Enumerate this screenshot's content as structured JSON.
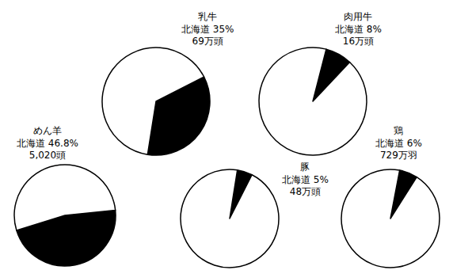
{
  "chart_data": [
    {
      "type": "pie",
      "title": "乳牛",
      "categories": [
        "北海道",
        null
      ],
      "values": [
        35,
        65
      ],
      "value_labels": [
        "35%",
        null
      ],
      "colors": [
        "#000000",
        "#ffffff"
      ],
      "annotation": "69万頭"
    },
    {
      "type": "pie",
      "title": "肉用牛",
      "categories": [
        "北海道",
        null
      ],
      "values": [
        8,
        92
      ],
      "value_labels": [
        "8%",
        null
      ],
      "colors": [
        "#000000",
        "#ffffff"
      ],
      "annotation": "16万頭"
    },
    {
      "type": "pie",
      "title": "めん羊",
      "categories": [
        "北海道",
        null
      ],
      "values": [
        46.8,
        53.2
      ],
      "value_labels": [
        "46.8%",
        null
      ],
      "colors": [
        "#000000",
        "#ffffff"
      ],
      "annotation": "5,020頭"
    },
    {
      "type": "pie",
      "title": "豚",
      "categories": [
        "北海道",
        null
      ],
      "values": [
        5,
        95
      ],
      "value_labels": [
        "5%",
        null
      ],
      "colors": [
        "#000000",
        "#ffffff"
      ],
      "annotation": "48万頭"
    },
    {
      "type": "pie",
      "title": "鶏",
      "categories": [
        "北海道",
        null
      ],
      "values": [
        6,
        94
      ],
      "value_labels": [
        "6%",
        null
      ],
      "colors": [
        "#000000",
        "#ffffff"
      ],
      "annotation": "729万羽"
    }
  ]
}
